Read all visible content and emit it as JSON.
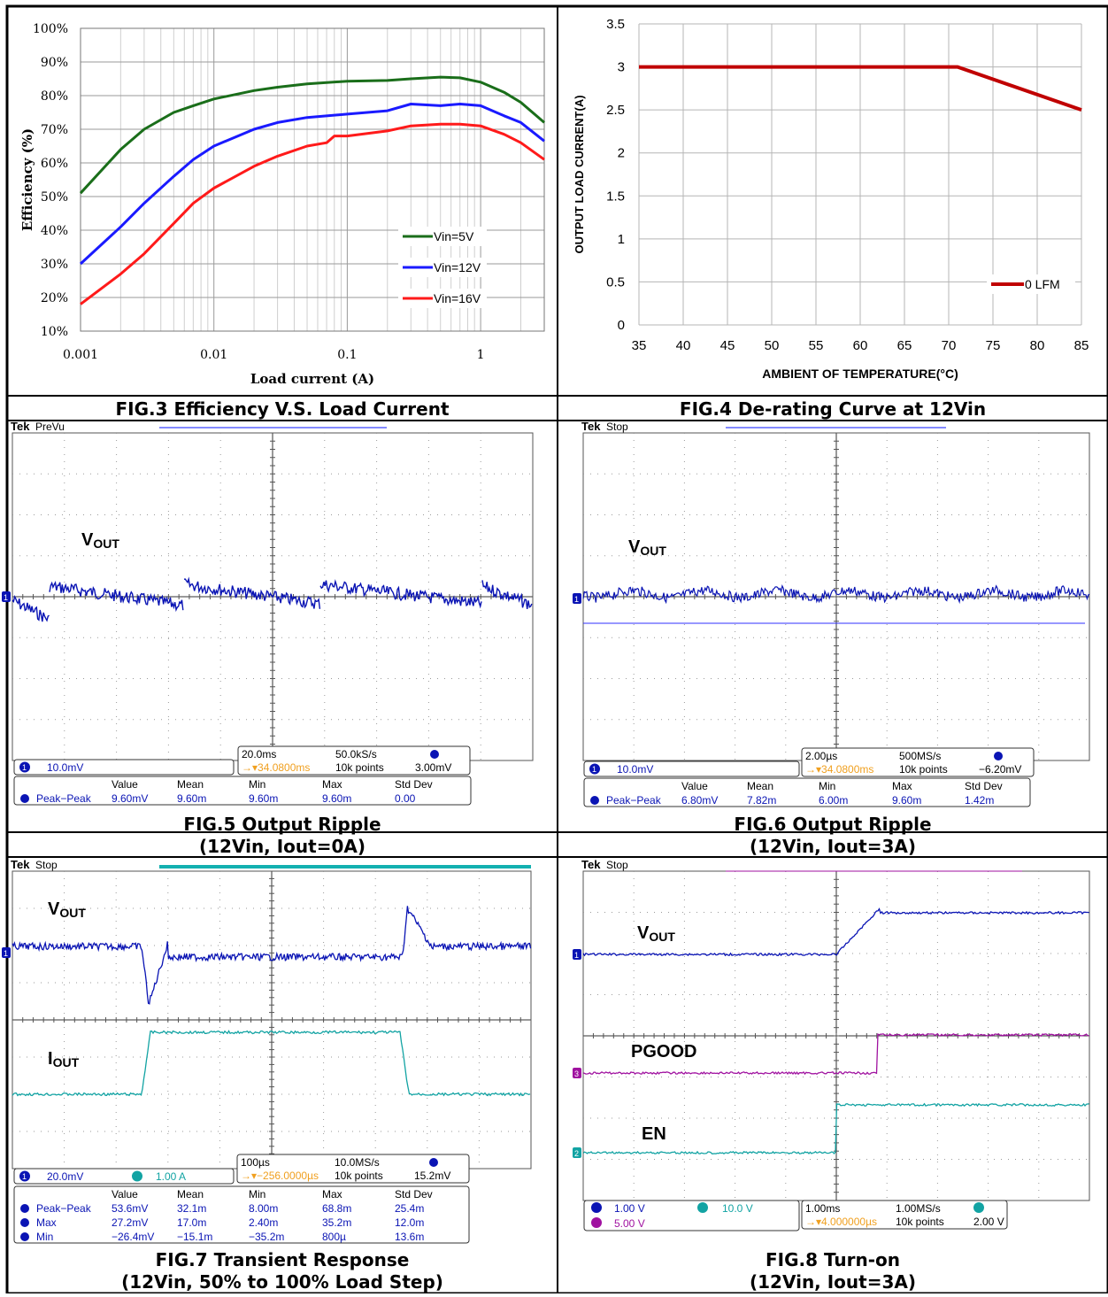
{
  "captions": {
    "fig3": "FIG.3 Efficiency V.S. Load Current",
    "fig4": "FIG.4 De-rating Curve at 12Vin",
    "fig5_l1": "FIG.5 Output Ripple",
    "fig5_l2": "(12Vin, Iout=0A)",
    "fig6_l1": "FIG.6 Output Ripple",
    "fig6_l2": "(12Vin, Iout=3A)",
    "fig7_l1": "FIG.7 Transient Response",
    "fig7_l2": "(12Vin, 50% to 100% Load Step)",
    "fig8_l1": "FIG.8 Turn-on",
    "fig8_l2": "(12Vin, Iout=3A)"
  },
  "colors": {
    "green": "#1a6e1a",
    "blue": "#1a1aff",
    "red": "#ff1a1a",
    "derate": "#c00000",
    "scope_blue": "#0a14b4",
    "scope_cyan": "#12a3a3",
    "scope_magenta": "#a012a0",
    "scope_orange": "#f0a020"
  },
  "chart_data": [
    {
      "type": "line",
      "id": "fig3",
      "xlabel": "Load current (A)",
      "ylabel": "Efficiency (%)",
      "xscale": "log",
      "xlim": [
        0.001,
        3
      ],
      "ylim": [
        10,
        100
      ],
      "xticks": [
        "0.001",
        "0.01",
        "0.1",
        "1"
      ],
      "yticks": [
        "10%",
        "20%",
        "30%",
        "40%",
        "50%",
        "60%",
        "70%",
        "80%",
        "90%",
        "100%"
      ],
      "legend_placement": "bottom-right",
      "grid": true,
      "series": [
        {
          "name": "Vin=5V",
          "color": "green",
          "points": [
            [
              0.001,
              51
            ],
            [
              0.002,
              64
            ],
            [
              0.003,
              70
            ],
            [
              0.005,
              75
            ],
            [
              0.007,
              77
            ],
            [
              0.01,
              79
            ],
            [
              0.02,
              81.5
            ],
            [
              0.03,
              82.5
            ],
            [
              0.05,
              83.5
            ],
            [
              0.1,
              84.3
            ],
            [
              0.2,
              84.5
            ],
            [
              0.3,
              85
            ],
            [
              0.5,
              85.5
            ],
            [
              0.7,
              85.3
            ],
            [
              1,
              84
            ],
            [
              1.5,
              81
            ],
            [
              2,
              78
            ],
            [
              3,
              72
            ]
          ]
        },
        {
          "name": "Vin=12V",
          "color": "blue",
          "points": [
            [
              0.001,
              30
            ],
            [
              0.002,
              41
            ],
            [
              0.003,
              48
            ],
            [
              0.005,
              56
            ],
            [
              0.007,
              61
            ],
            [
              0.01,
              65
            ],
            [
              0.02,
              70
            ],
            [
              0.03,
              72
            ],
            [
              0.05,
              73.5
            ],
            [
              0.1,
              74.5
            ],
            [
              0.2,
              75.5
            ],
            [
              0.3,
              77.5
            ],
            [
              0.5,
              77
            ],
            [
              0.7,
              77.5
            ],
            [
              1,
              77
            ],
            [
              1.5,
              74
            ],
            [
              2,
              72
            ],
            [
              3,
              66.5
            ]
          ]
        },
        {
          "name": "Vin=16V",
          "color": "red",
          "points": [
            [
              0.001,
              18
            ],
            [
              0.002,
              27
            ],
            [
              0.003,
              33
            ],
            [
              0.005,
              42
            ],
            [
              0.007,
              48
            ],
            [
              0.01,
              52.5
            ],
            [
              0.02,
              59
            ],
            [
              0.03,
              62
            ],
            [
              0.05,
              65
            ],
            [
              0.07,
              66
            ],
            [
              0.08,
              68
            ],
            [
              0.1,
              68
            ],
            [
              0.2,
              69.5
            ],
            [
              0.3,
              71
            ],
            [
              0.5,
              71.5
            ],
            [
              0.7,
              71.5
            ],
            [
              1,
              71
            ],
            [
              1.5,
              68.5
            ],
            [
              2,
              66
            ],
            [
              3,
              61
            ]
          ]
        }
      ]
    },
    {
      "type": "line",
      "id": "fig4",
      "xlabel": "AMBIENT OF TEMPERATURE(°C)",
      "ylabel": "OUTPUT LOAD CURRENT(A)",
      "xlim": [
        35,
        85
      ],
      "ylim": [
        0,
        3.5
      ],
      "xticks": [
        "35",
        "40",
        "45",
        "50",
        "55",
        "60",
        "65",
        "70",
        "75",
        "80",
        "85"
      ],
      "yticks": [
        "0",
        "0.5",
        "1",
        "1.5",
        "2",
        "2.5",
        "3",
        "3.5"
      ],
      "legend_placement": "bottom-right",
      "grid": true,
      "series": [
        {
          "name": "0 LFM",
          "color": "derate",
          "points": [
            [
              35,
              3
            ],
            [
              71,
              3
            ],
            [
              85,
              2.5
            ]
          ]
        }
      ]
    }
  ],
  "scopes": {
    "fig5": {
      "status": "PreVu",
      "trace_label": "V",
      "trace_sub": "OUT",
      "ch1_scale": "10.0mV",
      "timebase": "20.0ms",
      "sample_rate": "50.0kS/s",
      "trigger_pos": "→▾34.0800ms",
      "record": "10k points",
      "trig_level": "3.00mV",
      "meas_headers": [
        "Value",
        "Mean",
        "Min",
        "Max",
        "Std Dev"
      ],
      "meas_rows": [
        {
          "label": "Peak−Peak",
          "values": [
            "9.60mV",
            "9.60m",
            "9.60m",
            "9.60m",
            "0.00"
          ]
        }
      ]
    },
    "fig6": {
      "status": "Stop",
      "trace_label": "V",
      "trace_sub": "OUT",
      "ch1_scale": "10.0mV",
      "timebase": "2.00µs",
      "sample_rate": "500MS/s",
      "trigger_pos": "→▾34.0800ms",
      "record": "10k points",
      "trig_level": "−6.20mV",
      "meas_headers": [
        "Value",
        "Mean",
        "Min",
        "Max",
        "Std Dev"
      ],
      "meas_rows": [
        {
          "label": "Peak−Peak",
          "values": [
            "6.80mV",
            "7.82m",
            "6.00m",
            "9.60m",
            "1.42m"
          ]
        }
      ]
    },
    "fig7": {
      "status": "Stop",
      "trace_label": "V",
      "trace_sub": "OUT",
      "trace2_label": "I",
      "trace2_sub": "OUT",
      "ch1_scale": "20.0mV",
      "ch2_scale": "1.00 A",
      "timebase": "100µs",
      "sample_rate": "10.0MS/s",
      "trigger_pos": "→▾−256.0000µs",
      "record": "10k points",
      "trig_level": "15.2mV",
      "meas_headers": [
        "Value",
        "Mean",
        "Min",
        "Max",
        "Std Dev"
      ],
      "meas_rows": [
        {
          "label": "Peak−Peak",
          "values": [
            "53.6mV",
            "32.1m",
            "8.00m",
            "68.8m",
            "25.4m"
          ]
        },
        {
          "label": "Max",
          "values": [
            "27.2mV",
            "17.0m",
            "2.40m",
            "35.2m",
            "12.0m"
          ]
        },
        {
          "label": "Min",
          "values": [
            "−26.4mV",
            "−15.1m",
            "−35.2m",
            "800µ",
            "13.6m"
          ]
        }
      ]
    },
    "fig8": {
      "status": "Stop",
      "trace_label": "V",
      "trace_sub": "OUT",
      "pgood_label": "PGOOD",
      "en_label": "EN",
      "ch1_scale": "1.00 V",
      "ch2_scale": "10.0 V",
      "ch3_scale": "5.00 V",
      "timebase": "1.00ms",
      "sample_rate": "1.00MS/s",
      "trigger_pos": "→▾4.000000µs",
      "record": "10k points",
      "trig_level": "2.00 V"
    }
  },
  "brand": "Tek"
}
